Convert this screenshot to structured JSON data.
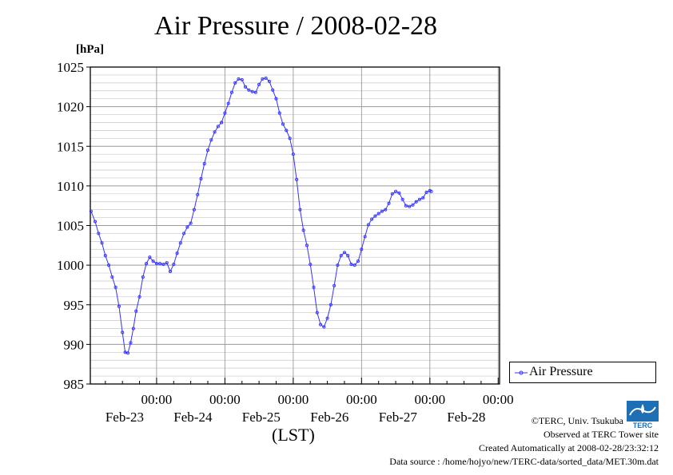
{
  "title": "Air Pressure / 2008-02-28",
  "chart_data": {
    "type": "line",
    "title": "Air Pressure / 2008-02-28",
    "ylabel": "[hPa]",
    "xlabel": "(LST)",
    "ylim": [
      985,
      1025
    ],
    "yticks": [
      985,
      990,
      995,
      1000,
      1005,
      1010,
      1015,
      1020,
      1025
    ],
    "xlim_days": [
      -0.97,
      5.02
    ],
    "xticks": [
      {
        "day": 0,
        "time": "00:00",
        "date": "Feb-23"
      },
      {
        "day": 1,
        "time": "00:00",
        "date": "Feb-24"
      },
      {
        "day": 2,
        "time": "00:00",
        "date": "Feb-25"
      },
      {
        "day": 3,
        "time": "00:00",
        "date": "Feb-26"
      },
      {
        "day": 4,
        "time": "00:00",
        "date": "Feb-27"
      },
      {
        "day": 5,
        "time": "00:00",
        "date": "Feb-28"
      }
    ],
    "grid": true,
    "legend_position": "right-lower",
    "series": [
      {
        "name": "Air Pressure",
        "color": "#3333ff",
        "points": [
          [
            -0.96,
            1006.8
          ],
          [
            -0.9,
            1005.5
          ],
          [
            -0.85,
            1004.0
          ],
          [
            -0.8,
            1002.8
          ],
          [
            -0.75,
            1001.2
          ],
          [
            -0.7,
            1000.0
          ],
          [
            -0.65,
            998.5
          ],
          [
            -0.6,
            997.2
          ],
          [
            -0.55,
            994.8
          ],
          [
            -0.5,
            991.5
          ],
          [
            -0.46,
            989.0
          ],
          [
            -0.42,
            988.9
          ],
          [
            -0.38,
            990.2
          ],
          [
            -0.34,
            992.0
          ],
          [
            -0.3,
            994.2
          ],
          [
            -0.25,
            996.0
          ],
          [
            -0.2,
            998.5
          ],
          [
            -0.15,
            1000.2
          ],
          [
            -0.1,
            1001.0
          ],
          [
            -0.05,
            1000.5
          ],
          [
            0.0,
            1000.2
          ],
          [
            0.05,
            1000.2
          ],
          [
            0.1,
            1000.1
          ],
          [
            0.15,
            1000.3
          ],
          [
            0.2,
            999.2
          ],
          [
            0.25,
            1000.1
          ],
          [
            0.3,
            1001.5
          ],
          [
            0.35,
            1002.8
          ],
          [
            0.4,
            1004.0
          ],
          [
            0.45,
            1004.8
          ],
          [
            0.5,
            1005.3
          ],
          [
            0.55,
            1007.0
          ],
          [
            0.6,
            1008.9
          ],
          [
            0.65,
            1010.9
          ],
          [
            0.7,
            1012.8
          ],
          [
            0.75,
            1014.5
          ],
          [
            0.8,
            1015.8
          ],
          [
            0.85,
            1016.8
          ],
          [
            0.9,
            1017.5
          ],
          [
            0.95,
            1018.0
          ],
          [
            1.0,
            1019.2
          ],
          [
            1.05,
            1020.4
          ],
          [
            1.1,
            1021.8
          ],
          [
            1.15,
            1023.0
          ],
          [
            1.2,
            1023.5
          ],
          [
            1.25,
            1023.4
          ],
          [
            1.3,
            1022.5
          ],
          [
            1.35,
            1022.1
          ],
          [
            1.4,
            1021.9
          ],
          [
            1.45,
            1021.8
          ],
          [
            1.5,
            1022.8
          ],
          [
            1.55,
            1023.5
          ],
          [
            1.6,
            1023.6
          ],
          [
            1.65,
            1023.2
          ],
          [
            1.7,
            1022.1
          ],
          [
            1.75,
            1021.0
          ],
          [
            1.8,
            1019.2
          ],
          [
            1.85,
            1017.8
          ],
          [
            1.9,
            1017.0
          ],
          [
            1.95,
            1016.0
          ],
          [
            2.0,
            1014.0
          ],
          [
            2.05,
            1010.8
          ],
          [
            2.1,
            1007.0
          ],
          [
            2.15,
            1004.4
          ],
          [
            2.2,
            1002.5
          ],
          [
            2.25,
            1000.1
          ],
          [
            2.3,
            997.2
          ],
          [
            2.35,
            994.0
          ],
          [
            2.4,
            992.5
          ],
          [
            2.45,
            992.2
          ],
          [
            2.5,
            993.3
          ],
          [
            2.55,
            995.0
          ],
          [
            2.6,
            997.4
          ],
          [
            2.65,
            1000.0
          ],
          [
            2.7,
            1001.2
          ],
          [
            2.75,
            1001.6
          ],
          [
            2.8,
            1001.2
          ],
          [
            2.85,
            1000.1
          ],
          [
            2.9,
            1000.0
          ],
          [
            2.95,
            1000.5
          ],
          [
            3.0,
            1002.0
          ],
          [
            3.05,
            1003.6
          ],
          [
            3.1,
            1005.1
          ],
          [
            3.15,
            1005.8
          ],
          [
            3.2,
            1006.2
          ],
          [
            3.25,
            1006.5
          ],
          [
            3.3,
            1006.8
          ],
          [
            3.35,
            1007.0
          ],
          [
            3.4,
            1007.8
          ],
          [
            3.45,
            1009.0
          ],
          [
            3.5,
            1009.3
          ],
          [
            3.55,
            1009.1
          ],
          [
            3.6,
            1008.3
          ],
          [
            3.65,
            1007.5
          ],
          [
            3.7,
            1007.4
          ],
          [
            3.75,
            1007.6
          ],
          [
            3.8,
            1008.0
          ],
          [
            3.85,
            1008.3
          ],
          [
            3.9,
            1008.5
          ],
          [
            3.95,
            1009.2
          ],
          [
            4.0,
            1009.4
          ],
          [
            4.02,
            1009.3
          ]
        ]
      }
    ]
  },
  "legend_label": "Air Pressure",
  "footer": {
    "line1": "©TERC, Univ. Tsukuba",
    "line2": "Observed at TERC Tower site",
    "line3": "Created Automatically at 2008-02-28/23:32:12",
    "line4": "Data source : /home/hojyo/new/TERC-data/sorted_data/MET.30m.dat"
  },
  "logo": {
    "icon": "terc-logo-icon",
    "text": "TERC",
    "color": "#1f6fb5"
  }
}
